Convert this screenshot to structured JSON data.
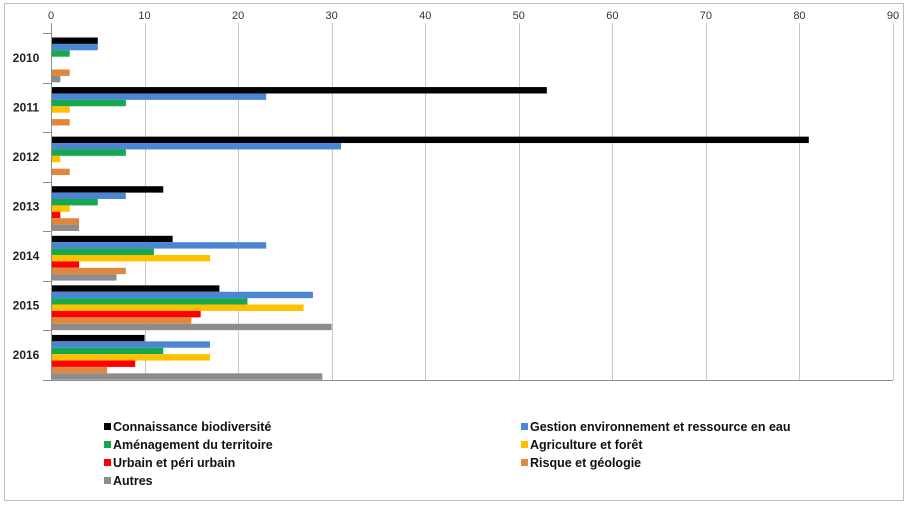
{
  "chart_data": {
    "type": "bar",
    "orientation": "horizontal",
    "categories": [
      "2010",
      "2011",
      "2012",
      "2013",
      "2014",
      "2015",
      "2016"
    ],
    "xlim": [
      0,
      90
    ],
    "xticks": [
      0,
      10,
      20,
      30,
      40,
      50,
      60,
      70,
      80,
      90
    ],
    "grid": true,
    "legend_position": "bottom",
    "series": [
      {
        "name": "Connaissance biodiversité",
        "color": "#000000",
        "values": [
          5,
          53,
          81,
          12,
          13,
          18,
          10
        ]
      },
      {
        "name": "Gestion environnement et ressource en eau",
        "color": "#4A86D4",
        "values": [
          5,
          23,
          31,
          8,
          23,
          28,
          17
        ]
      },
      {
        "name": "Aménagement du territoire",
        "color": "#16A84C",
        "values": [
          2,
          8,
          8,
          5,
          11,
          21,
          12
        ]
      },
      {
        "name": "Agriculture et forêt",
        "color": "#FFC000",
        "values": [
          0,
          2,
          1,
          2,
          17,
          27,
          17
        ]
      },
      {
        "name": "Urbain et péri urbain",
        "color": "#FF0000",
        "values": [
          0,
          0,
          0,
          1,
          3,
          16,
          9
        ]
      },
      {
        "name": "Risque et géologie",
        "color": "#E0873E",
        "values": [
          2,
          2,
          2,
          3,
          8,
          15,
          6
        ]
      },
      {
        "name": "Autres",
        "color": "#8C8C8C",
        "values": [
          1,
          0,
          0,
          3,
          7,
          30,
          29
        ]
      }
    ]
  }
}
